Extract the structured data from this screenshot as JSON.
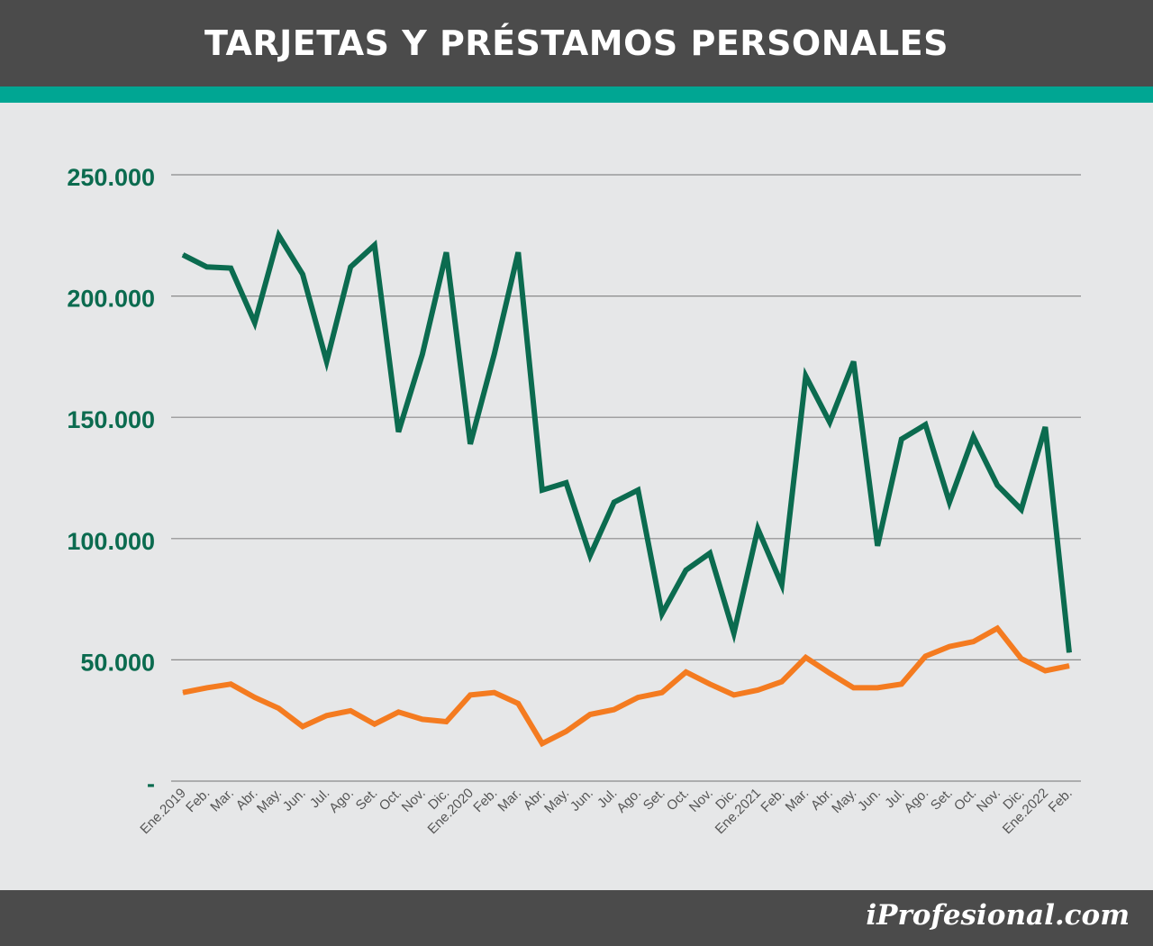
{
  "header": {
    "title": "TARJETAS Y PRÉSTAMOS PERSONALES"
  },
  "footer": {
    "brand": "iProfesional.com"
  },
  "colors": {
    "header_bg": "#4b4b4b",
    "accent": "#00a693",
    "background": "#e6e7e8",
    "tarjetas_line": "#0b6b4f",
    "prestamos_line": "#f47b20",
    "grid": "#8a8a8a",
    "y_tick_text": "#0b6b4f",
    "x_tick_text": "#555555"
  },
  "chart_data": {
    "type": "line",
    "title": "TARJETAS Y PRÉSTAMOS PERSONALES",
    "xlabel": "",
    "ylabel": "",
    "ylim": [
      0,
      250000
    ],
    "y_ticks": [
      0,
      50000,
      100000,
      150000,
      200000,
      250000
    ],
    "y_tick_labels": [
      "-",
      "50.000",
      "100.000",
      "150.000",
      "200.000",
      "250.000"
    ],
    "grid": true,
    "legend": "none",
    "categories": [
      "Ene.2019",
      "Feb.",
      "Mar.",
      "Abr.",
      "May.",
      "Jun.",
      "Jul.",
      "Ago.",
      "Set.",
      "Oct.",
      "Nov.",
      "Dic.",
      "Ene.2020",
      "Feb.",
      "Mar.",
      "Abr.",
      "May.",
      "Jun.",
      "Jul.",
      "Ago.",
      "Set.",
      "Oct.",
      "Nov.",
      "Dic.",
      "Ene.2021",
      "Feb.",
      "Mar.",
      "Abr.",
      "May.",
      "Jun.",
      "Jul.",
      "Ago.",
      "Set.",
      "Oct.",
      "Nov.",
      "Dic.",
      "Ene.2022",
      "Feb."
    ],
    "series": [
      {
        "color": "#0b6b4f",
        "values": [
          217000,
          212000,
          211500,
          189000,
          225000,
          209000,
          173000,
          212000,
          221000,
          144000,
          176000,
          218000,
          139000,
          176000,
          218000,
          120000,
          123000,
          93000,
          115000,
          120000,
          69000,
          87000,
          94000,
          61000,
          104000,
          81000,
          167000,
          148000,
          173000,
          97000,
          141000,
          147000,
          115000,
          142000,
          122000,
          112000,
          146000,
          53000
        ]
      },
      {
        "color": "#f47b20",
        "values": [
          36500,
          38500,
          40000,
          34500,
          30000,
          22500,
          27000,
          29000,
          23500,
          28500,
          25500,
          24500,
          35500,
          36500,
          32000,
          15500,
          20500,
          27500,
          29500,
          34500,
          36500,
          45000,
          40000,
          35500,
          37500,
          41000,
          51000,
          44500,
          38500,
          38500,
          40000,
          51500,
          55500,
          57500,
          63000,
          50500,
          45500,
          47500
        ]
      }
    ]
  }
}
